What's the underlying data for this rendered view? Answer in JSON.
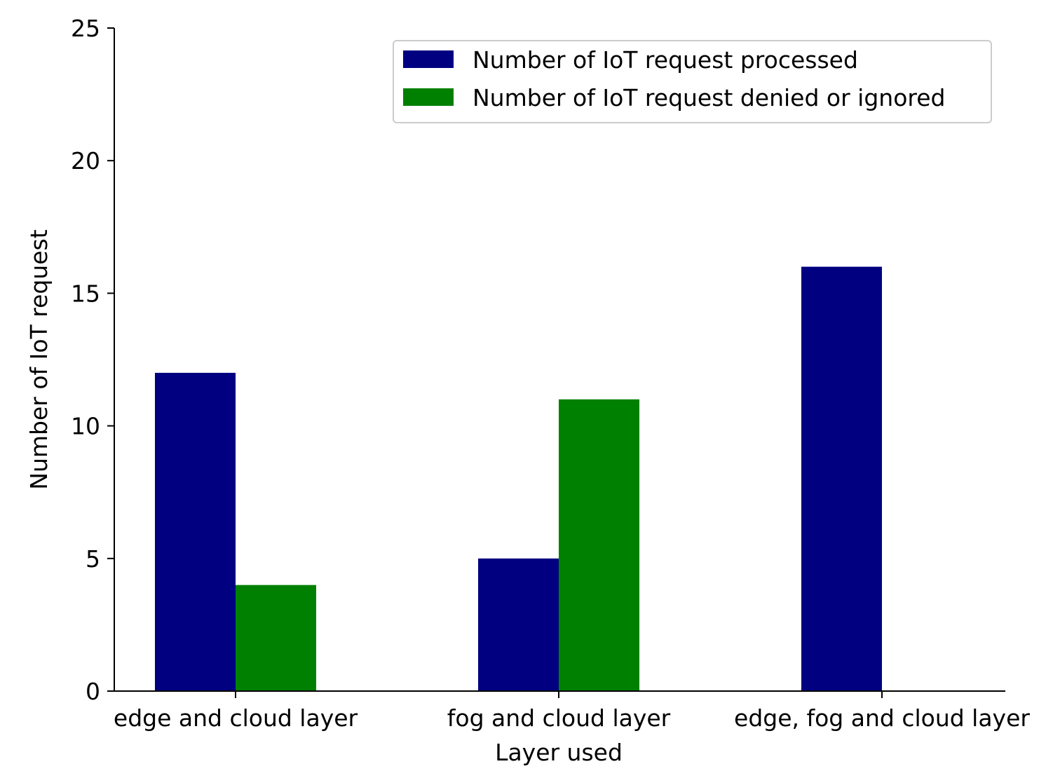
{
  "chart_data": {
    "type": "bar",
    "title": "",
    "xlabel": "Layer used",
    "ylabel": "Number of IoT request",
    "categories": [
      "edge and cloud layer",
      "fog and cloud layer",
      "edge, fog and cloud layer"
    ],
    "ylim": [
      0,
      25
    ],
    "yticks": [
      0,
      5,
      10,
      15,
      20,
      25
    ],
    "grid": false,
    "legend_position": "top-right",
    "series": [
      {
        "name": "Number of IoT request processed",
        "values": [
          12,
          5,
          16
        ],
        "color": "#000080"
      },
      {
        "name": "Number of IoT request denied or ignored",
        "values": [
          4,
          11,
          0
        ],
        "color": "#008000"
      }
    ]
  }
}
